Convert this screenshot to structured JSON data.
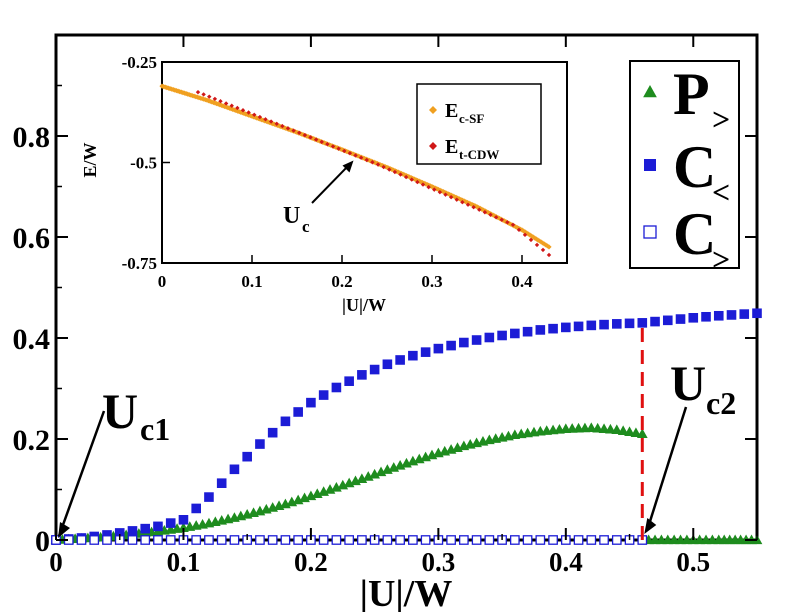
{
  "chart_data": [
    {
      "id": "main",
      "type": "scatter",
      "xlabel": "|U|/W",
      "ylabel": "",
      "xlim": [
        0,
        0.55
      ],
      "ylim": [
        0,
        1.0
      ],
      "x_ticks": [
        0,
        0.1,
        0.2,
        0.3,
        0.4,
        0.5
      ],
      "x_tick_labels": [
        "0",
        "0.1",
        "0.2",
        "0.3",
        "0.4",
        "0.5"
      ],
      "y_ticks": [
        0,
        0.2,
        0.4,
        0.6,
        0.8
      ],
      "y_tick_labels": [
        "0",
        "0.2",
        "0.4",
        "0.6",
        "0.8"
      ],
      "legend": {
        "position": "top-right",
        "entries": [
          {
            "symbol": "triangle-filled",
            "color": "#1e8c1e",
            "letter": "P",
            "sub": ">"
          },
          {
            "symbol": "square-filled",
            "color": "#1c1cd6",
            "letter": "C",
            "sub": "<"
          },
          {
            "symbol": "square-open",
            "color": "#1c1cd6",
            "letter": "C",
            "sub": ">"
          }
        ]
      },
      "annotations": [
        {
          "label": "U",
          "sub": "c1",
          "points_to": [
            0.0,
            0.0
          ]
        },
        {
          "label": "U",
          "sub": "c2",
          "points_to": [
            0.46,
            0.0
          ]
        }
      ],
      "vline": {
        "x": 0.46,
        "y_from": 0.0,
        "y_to": 0.43,
        "color": "#e01010",
        "style": "dashed"
      },
      "series": [
        {
          "name": "P>",
          "marker": "triangle-filled",
          "color": "#1e8c1e",
          "x": [
            0.0,
            0.02,
            0.04,
            0.06,
            0.08,
            0.1,
            0.12,
            0.14,
            0.16,
            0.18,
            0.2,
            0.22,
            0.24,
            0.26,
            0.28,
            0.3,
            0.32,
            0.34,
            0.36,
            0.38,
            0.4,
            0.42,
            0.44,
            0.46
          ],
          "y": [
            0.0,
            0.003,
            0.006,
            0.011,
            0.017,
            0.024,
            0.033,
            0.044,
            0.057,
            0.071,
            0.087,
            0.104,
            0.121,
            0.139,
            0.156,
            0.172,
            0.186,
            0.198,
            0.208,
            0.215,
            0.22,
            0.222,
            0.218,
            0.21
          ]
        },
        {
          "name": "P> (after Uc2)",
          "marker": "triangle-filled",
          "color": "#1e8c1e",
          "x": [
            0.465,
            0.48,
            0.5,
            0.52,
            0.55
          ],
          "y": [
            0.0,
            0.0,
            0.0,
            0.0,
            0.0
          ]
        },
        {
          "name": "C<",
          "marker": "square-filled",
          "color": "#1c1cd6",
          "x": [
            0.0,
            0.02,
            0.04,
            0.06,
            0.08,
            0.1,
            0.12,
            0.14,
            0.16,
            0.18,
            0.2,
            0.22,
            0.24,
            0.26,
            0.28,
            0.3,
            0.32,
            0.34,
            0.36,
            0.38,
            0.4,
            0.42,
            0.44,
            0.46,
            0.48,
            0.5,
            0.52,
            0.55
          ],
          "y": [
            0.0,
            0.004,
            0.01,
            0.018,
            0.027,
            0.04,
            0.085,
            0.14,
            0.19,
            0.235,
            0.272,
            0.302,
            0.327,
            0.348,
            0.365,
            0.379,
            0.391,
            0.401,
            0.409,
            0.416,
            0.421,
            0.425,
            0.428,
            0.43,
            0.435,
            0.44,
            0.444,
            0.449
          ]
        },
        {
          "name": "C>",
          "marker": "square-open",
          "color": "#1c1cd6",
          "x": [
            0.0,
            0.02,
            0.04,
            0.06,
            0.08,
            0.1,
            0.12,
            0.14,
            0.16,
            0.18,
            0.2,
            0.22,
            0.24,
            0.26,
            0.28,
            0.3,
            0.32,
            0.34,
            0.36,
            0.38,
            0.4,
            0.42,
            0.44,
            0.46
          ],
          "y": [
            0.0,
            0.0,
            0.0,
            0.0,
            0.0,
            0.0,
            0.0,
            0.0,
            0.0,
            0.0,
            0.0,
            0.0,
            0.0,
            0.0,
            0.0,
            0.0,
            0.0,
            0.0,
            0.0,
            0.0,
            0.0,
            0.0,
            0.0,
            0.0
          ]
        }
      ]
    },
    {
      "id": "inset",
      "type": "scatter",
      "xlabel": "|U|/W",
      "ylabel": "E/W",
      "xlim": [
        0,
        0.45
      ],
      "ylim": [
        -0.75,
        -0.25
      ],
      "x_ticks": [
        0,
        0.1,
        0.2,
        0.3,
        0.4
      ],
      "x_tick_labels": [
        "0",
        "0.1",
        "0.2",
        "0.3",
        "0.4"
      ],
      "y_ticks": [
        -0.25,
        -0.5,
        -0.75
      ],
      "y_tick_labels": [
        "-0.25",
        "-0.5",
        "-0.75"
      ],
      "legend": {
        "position": "top-right",
        "entries": [
          {
            "symbol": "diamond",
            "color": "#f0a020",
            "label": "E",
            "sub": "c-SF"
          },
          {
            "symbol": "diamond",
            "color": "#d01818",
            "label": "E",
            "sub": "t-CDW"
          }
        ]
      },
      "annotations": [
        {
          "label": "U",
          "sub": "c",
          "points_to": [
            0.215,
            -0.48
          ]
        }
      ],
      "series": [
        {
          "name": "E c-SF",
          "marker": "diamond",
          "color": "#f0a020",
          "x": [
            0.0,
            0.05,
            0.1,
            0.15,
            0.2,
            0.25,
            0.3,
            0.35,
            0.4,
            0.43
          ],
          "y": [
            -0.31,
            -0.345,
            -0.385,
            -0.425,
            -0.468,
            -0.512,
            -0.56,
            -0.61,
            -0.668,
            -0.71
          ]
        },
        {
          "name": "E t-CDW",
          "marker": "diamond",
          "color": "#d01818",
          "x": [
            0.04,
            0.09,
            0.14,
            0.19,
            0.24,
            0.29,
            0.34,
            0.39,
            0.43
          ],
          "y": [
            -0.325,
            -0.37,
            -0.415,
            -0.46,
            -0.505,
            -0.555,
            -0.605,
            -0.655,
            -0.73
          ]
        }
      ]
    }
  ]
}
